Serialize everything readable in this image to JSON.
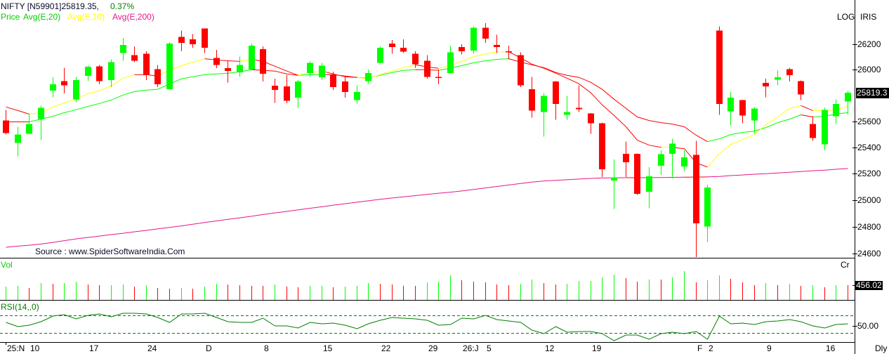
{
  "header": {
    "symbol": "NIFTY [N59901]25819.35,",
    "change": "0.37%",
    "legend": [
      {
        "label": "Price",
        "color": "#00d000"
      },
      {
        "label": "Avg(E,20)",
        "color": "#00d000"
      },
      {
        "label": "Avg(E,10)",
        "color": "#ffff00"
      },
      {
        "label": "Avg(E,200)",
        "color": "#e6178a"
      }
    ]
  },
  "axis_badges": {
    "log": "LOG",
    "iris": "IRIS"
  },
  "price_axis": {
    "ticks": [
      26200,
      26000,
      25600,
      25400,
      25200,
      25000,
      24800,
      24600
    ],
    "last_price_label": "25819.3",
    "last_price_value": 25819.35
  },
  "source": "Source : www.SpiderSoftwareIndia.Com",
  "volume_pane": {
    "title": "Vol",
    "unit": "Cr",
    "last_value_label": "456.02",
    "last_value": 456.02
  },
  "rsi_pane": {
    "title": "RSI(14,,0)",
    "tick_label": "50.00",
    "tick_value": 50
  },
  "periodicity": "Dly",
  "colors": {
    "up": "#00ff00",
    "down": "#ff0000",
    "ema10": "#ffff00",
    "ema20": "#00ff00",
    "ema200": "#e6178a",
    "below": "#ff0000",
    "rsi": "#008000",
    "vol_title": "#00d000",
    "rsi_title": "#008000",
    "change_text": "#008000",
    "axis": "#000000"
  },
  "chart_data": {
    "type": "candlestick",
    "title": "NIFTY [N59901]25819.35, 0.37%",
    "yscale": "log",
    "ylim": [
      24574,
      26368
    ],
    "yticks": [
      26200,
      26000,
      25600,
      25400,
      25200,
      25000,
      24800,
      24600
    ],
    "last_close": 25819.35,
    "x_labels": [
      {
        "label": "25:N",
        "index": 0
      },
      {
        "label": "10",
        "index": 2
      },
      {
        "label": "17",
        "index": 7
      },
      {
        "label": "24",
        "index": 12
      },
      {
        "label": "D",
        "index": 17
      },
      {
        "label": "8",
        "index": 22
      },
      {
        "label": "15",
        "index": 27
      },
      {
        "label": "22",
        "index": 32
      },
      {
        "label": "29",
        "index": 36
      },
      {
        "label": "26:J",
        "index": 39
      },
      {
        "label": "5",
        "index": 41
      },
      {
        "label": "12",
        "index": 46
      },
      {
        "label": "19",
        "index": 50
      },
      {
        "label": "F",
        "index": 59
      },
      {
        "label": "2",
        "index": 60
      },
      {
        "label": "9",
        "index": 65
      },
      {
        "label": "16",
        "index": 70
      }
    ],
    "ohlc_fields": [
      "open",
      "high",
      "low",
      "close"
    ],
    "ohlc": [
      [
        25606,
        25688,
        25497,
        25508
      ],
      [
        25432,
        25557,
        25330,
        25497
      ],
      [
        25503,
        25655,
        25500,
        25578
      ],
      [
        25616,
        25721,
        25454,
        25704
      ],
      [
        25836,
        25940,
        25786,
        25885
      ],
      [
        25912,
        26016,
        25814,
        25879
      ],
      [
        25770,
        25945,
        25748,
        25918
      ],
      [
        25951,
        26032,
        25912,
        26022
      ],
      [
        26027,
        26038,
        25885,
        25912
      ],
      [
        25918,
        26081,
        25863,
        26059
      ],
      [
        26130,
        26249,
        26070,
        26195
      ],
      [
        26114,
        26184,
        26059,
        26070
      ],
      [
        26124,
        26146,
        25918,
        25956
      ],
      [
        26005,
        26038,
        25863,
        25885
      ],
      [
        25847,
        26216,
        25845,
        26205
      ],
      [
        26259,
        26308,
        26146,
        26211
      ],
      [
        26238,
        26281,
        26173,
        26200
      ],
      [
        26324,
        26326,
        26130,
        26173
      ],
      [
        26092,
        26157,
        26011,
        26038
      ],
      [
        26011,
        26070,
        25901,
        25989
      ],
      [
        25978,
        26103,
        25945,
        26038
      ],
      [
        26000,
        26205,
        25995,
        26189
      ],
      [
        26162,
        26184,
        25907,
        25967
      ],
      [
        25874,
        25929,
        25742,
        25841
      ],
      [
        25869,
        25956,
        25740,
        25759
      ],
      [
        25781,
        25918,
        25704,
        25907
      ],
      [
        25973,
        26065,
        25945,
        26054
      ],
      [
        25940,
        26054,
        25918,
        26032
      ],
      [
        25962,
        25984,
        25841,
        25863
      ],
      [
        25907,
        25945,
        25781,
        25825
      ],
      [
        25764,
        25879,
        25737,
        25825
      ],
      [
        25912,
        26000,
        25890,
        25973
      ],
      [
        26054,
        26184,
        26050,
        26173
      ],
      [
        26205,
        26232,
        26124,
        26178
      ],
      [
        26173,
        26238,
        26130,
        26141
      ],
      [
        26124,
        26146,
        26016,
        26043
      ],
      [
        26070,
        26114,
        25929,
        25945
      ],
      [
        25945,
        26000,
        25885,
        25940
      ],
      [
        25973,
        26189,
        25970,
        26135
      ],
      [
        26178,
        26200,
        26119,
        26146
      ],
      [
        26151,
        26341,
        26124,
        26330
      ],
      [
        26330,
        26368,
        26211,
        26243
      ],
      [
        26195,
        26276,
        26130,
        26178
      ],
      [
        26146,
        26189,
        26081,
        26141
      ],
      [
        26114,
        26135,
        25863,
        25879
      ],
      [
        25847,
        25945,
        25627,
        25682
      ],
      [
        25671,
        25819,
        25481,
        25797
      ],
      [
        25907,
        25910,
        25611,
        25732
      ],
      [
        25649,
        25797,
        25611,
        25671
      ],
      [
        25704,
        25879,
        25671,
        25693
      ],
      [
        25660,
        25662,
        25503,
        25584
      ],
      [
        25584,
        25589,
        25174,
        25232
      ],
      [
        25147,
        25308,
        24932,
        25168
      ],
      [
        25351,
        25443,
        25174,
        25286
      ],
      [
        25351,
        25353,
        25037,
        25047
      ],
      [
        25063,
        25249,
        24937,
        25179
      ],
      [
        25259,
        25378,
        25189,
        25346
      ],
      [
        25351,
        25465,
        25163,
        25427
      ],
      [
        25254,
        25378,
        25216,
        25324
      ],
      [
        25341,
        25449,
        24574,
        24826
      ],
      [
        24800,
        25116,
        24684,
        25095
      ],
      [
        26308,
        26341,
        25649,
        25732
      ],
      [
        25677,
        25825,
        25568,
        25781
      ],
      [
        25764,
        25766,
        25584,
        25644
      ],
      [
        25605,
        25710,
        25503,
        25699
      ],
      [
        25896,
        25929,
        25786,
        25869
      ],
      [
        25923,
        25995,
        25879,
        25940
      ],
      [
        26005,
        26016,
        25907,
        25956
      ],
      [
        25912,
        25915,
        25764,
        25808
      ],
      [
        25578,
        25638,
        25449,
        25470
      ],
      [
        25422,
        25704,
        25378,
        25688
      ],
      [
        25638,
        25770,
        25578,
        25732
      ],
      [
        25753,
        25836,
        25649,
        25819.35
      ]
    ],
    "series": [
      {
        "name": "Avg(E,20)",
        "key": "ema20",
        "color": "ema20",
        "below_color": "below",
        "values": [
          25595,
          25595,
          25595,
          25616,
          25638,
          25666,
          25688,
          25715,
          25737,
          25764,
          25803,
          25830,
          25841,
          25847,
          25890,
          25929,
          25945,
          25962,
          25967,
          25973,
          25984,
          26000,
          25995,
          25989,
          25967,
          25956,
          25962,
          25962,
          25962,
          25951,
          25940,
          25934,
          25956,
          25978,
          25995,
          26000,
          26000,
          25995,
          26011,
          26032,
          26054,
          26070,
          26081,
          26086,
          26059,
          26038,
          26016,
          25978,
          25956,
          25940,
          25901,
          25847,
          25770,
          25699,
          25633,
          25605,
          25589,
          25578,
          25557,
          25492,
          25443,
          25465,
          25497,
          25514,
          25524,
          25551,
          25589,
          25616,
          25649,
          25633,
          25638,
          25655,
          25666
        ]
      },
      {
        "name": "Avg(E,10)",
        "key": "ema10",
        "color": "ema10",
        "below_color": "below",
        "values": [
          25710,
          25682,
          25655,
          25666,
          25710,
          25742,
          25770,
          25814,
          25836,
          25874,
          25934,
          25962,
          25962,
          25951,
          25995,
          26032,
          26059,
          26086,
          26076,
          26070,
          26065,
          26081,
          26065,
          26027,
          25989,
          25956,
          25978,
          25989,
          25967,
          25945,
          25940,
          25929,
          25962,
          25989,
          26016,
          26038,
          26022,
          26011,
          26032,
          26065,
          26103,
          26124,
          26141,
          26141,
          26092,
          26043,
          26011,
          25973,
          25934,
          25890,
          25819,
          25726,
          25644,
          25557,
          25454,
          25416,
          25400,
          25400,
          25389,
          25281,
          25249,
          25351,
          25422,
          25459,
          25497,
          25573,
          25633,
          25699,
          25721,
          25682,
          25682,
          25688,
          25715
        ]
      },
      {
        "name": "Avg(E,200)",
        "key": "ema200",
        "color": "ema200",
        "below_color": "below",
        "values": [
          24647,
          24655,
          24662,
          24671,
          24683,
          24696,
          24709,
          24720,
          24730,
          24741,
          24751,
          24762,
          24772,
          24783,
          24795,
          24806,
          24818,
          24831,
          24843,
          24855,
          24866,
          24878,
          24891,
          24903,
          24914,
          24926,
          24938,
          24949,
          24961,
          24972,
          24983,
          24994,
          25005,
          25015,
          25024,
          25033,
          25042,
          25051,
          25059,
          25068,
          25079,
          25091,
          25102,
          25113,
          25124,
          25135,
          25144,
          25148,
          25153,
          25158,
          25163,
          25166,
          25167,
          25168,
          25168,
          25169,
          25170,
          25171,
          25172,
          25173,
          25174,
          25178,
          25184,
          25189,
          25195,
          25198,
          25204,
          25210,
          25215,
          25221,
          25226,
          25232,
          25238
        ]
      }
    ],
    "volume": {
      "name": "Vol",
      "unit": "Cr",
      "values": [
        413,
        434,
        369,
        521,
        500,
        521,
        565,
        478,
        456,
        456,
        478,
        413,
        456,
        369,
        348,
        369,
        348,
        413,
        500,
        478,
        456,
        434,
        434,
        478,
        413,
        391,
        434,
        434,
        391,
        413,
        434,
        521,
        500,
        478,
        434,
        434,
        543,
        565,
        760,
        608,
        565,
        543,
        478,
        456,
        500,
        630,
        521,
        478,
        500,
        586,
        586,
        695,
        782,
        673,
        565,
        630,
        630,
        695,
        891,
        543,
        608,
        760,
        652,
        543,
        456,
        521,
        456,
        500,
        434,
        456,
        391,
        456,
        456.02
      ],
      "direction": [
        "up",
        "up",
        "down",
        "up",
        "down",
        "up",
        "up",
        "down",
        "down",
        "up",
        "up",
        "down",
        "up",
        "down",
        "down",
        "up",
        "down",
        "up",
        "up",
        "down",
        "down",
        "down",
        "down",
        "up",
        "down",
        "down",
        "up",
        "up",
        "down",
        "up",
        "up",
        "up",
        "down",
        "down",
        "down",
        "down",
        "up",
        "up",
        "up",
        "down",
        "down",
        "down",
        "down",
        "down",
        "up",
        "up",
        "down",
        "down",
        "up",
        "up",
        "up",
        "up",
        "up",
        "down",
        "down",
        "up",
        "down",
        "up",
        "up",
        "down",
        "up",
        "up",
        "down",
        "down",
        "down",
        "up",
        "down",
        "up",
        "down",
        "up",
        "down",
        "up",
        "down"
      ]
    },
    "rsi": {
      "name": "RSI(14,,0)",
      "levels": [
        60,
        40
      ],
      "values": [
        52.0,
        47.2,
        48.8,
        52.8,
        59.2,
        60.8,
        56.0,
        60.0,
        61.6,
        58.4,
        62.4,
        62.4,
        61.6,
        57.6,
        52.0,
        61.6,
        61.6,
        62.4,
        57.6,
        52.8,
        52.0,
        52.0,
        56.8,
        48.0,
        48.0,
        45.6,
        52.0,
        50.4,
        51.2,
        48.8,
        44.8,
        50.4,
        54.4,
        57.6,
        56.8,
        56.0,
        54.4,
        48.8,
        49.6,
        56.8,
        56.0,
        60.0,
        55.2,
        53.6,
        52.0,
        43.2,
        39.2,
        47.2,
        40.8,
        41.6,
        41.6,
        39.2,
        31.2,
        37.6,
        37.6,
        32.8,
        39.2,
        40.8,
        39.2,
        41.6,
        32.8,
        59.2,
        50.4,
        51.2,
        49.6,
        52.8,
        53.6,
        55.2,
        52.8,
        48.0,
        45.6,
        49.6,
        50.4
      ]
    }
  }
}
